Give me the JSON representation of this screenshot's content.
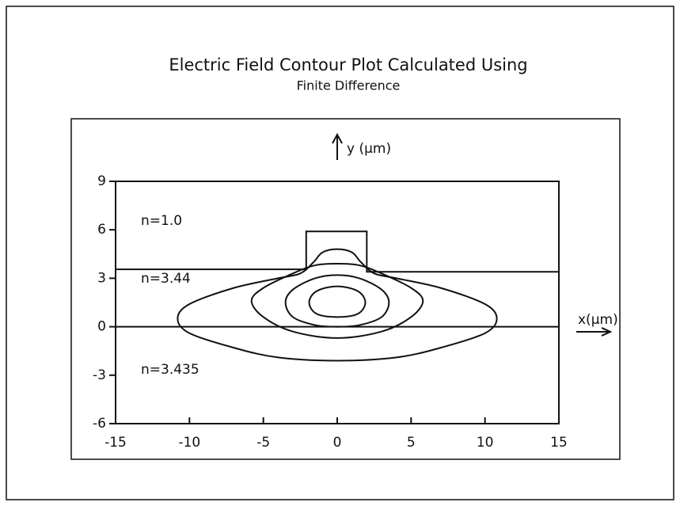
{
  "chart_data": {
    "type": "contour",
    "title": "Electric Field Contour Plot Calculated Using",
    "subtitle": "Finite Difference",
    "x_label": "x(μm)",
    "y_label": "y (μm)",
    "xlim": [
      -15,
      15
    ],
    "ylim": [
      -6,
      9
    ],
    "xticks": [
      -15,
      -10,
      -5,
      0,
      5,
      10,
      15
    ],
    "yticks": [
      -6,
      -3,
      0,
      3,
      6,
      9
    ],
    "annotations": [
      "n=1.0",
      "n=3.44",
      "n=3.435"
    ],
    "structures": [
      {
        "x": [
          -15,
          -2.1,
          -2.1,
          2,
          2,
          15
        ],
        "y": [
          3.55,
          3.55,
          5.9,
          5.9,
          3.4,
          3.4
        ]
      },
      {
        "x": [
          -15,
          15
        ],
        "y": [
          0,
          0
        ]
      }
    ],
    "contours": [
      {
        "x": [
          -10.8,
          -10,
          -7,
          -4,
          -2.5,
          -1.6,
          -1,
          0,
          1,
          1.6,
          2.5,
          4,
          7,
          10,
          10.8,
          10,
          7,
          4,
          0,
          -4,
          -7,
          -10
        ],
        "y": [
          0.5,
          1.4,
          2.4,
          3.0,
          3.3,
          4.0,
          4.6,
          4.8,
          4.6,
          4.0,
          3.3,
          3.0,
          2.4,
          1.4,
          0.5,
          -0.4,
          -1.3,
          -1.9,
          -2.1,
          -1.9,
          -1.3,
          -0.4
        ]
      },
      {
        "x": [
          -5.8,
          -5,
          -3,
          -1.5,
          0,
          1.5,
          3,
          5,
          5.8,
          5,
          3,
          0,
          -3,
          -5
        ],
        "y": [
          1.6,
          2.4,
          3.3,
          3.8,
          3.9,
          3.8,
          3.3,
          2.4,
          1.6,
          0.6,
          -0.3,
          -0.7,
          -0.3,
          0.6
        ]
      },
      {
        "x": [
          -3.5,
          -3,
          -1.5,
          0,
          1.5,
          3,
          3.5,
          3,
          1.5,
          0,
          -1.5,
          -3
        ],
        "y": [
          1.5,
          2.3,
          3.0,
          3.2,
          3.0,
          2.3,
          1.5,
          0.6,
          0.1,
          0,
          0.1,
          0.6
        ]
      },
      {
        "x": [
          -1.9,
          -1.4,
          0,
          1.4,
          1.9,
          1.4,
          0,
          -1.4
        ],
        "y": [
          1.5,
          2.2,
          2.5,
          2.2,
          1.5,
          0.8,
          0.6,
          0.8
        ]
      }
    ]
  }
}
